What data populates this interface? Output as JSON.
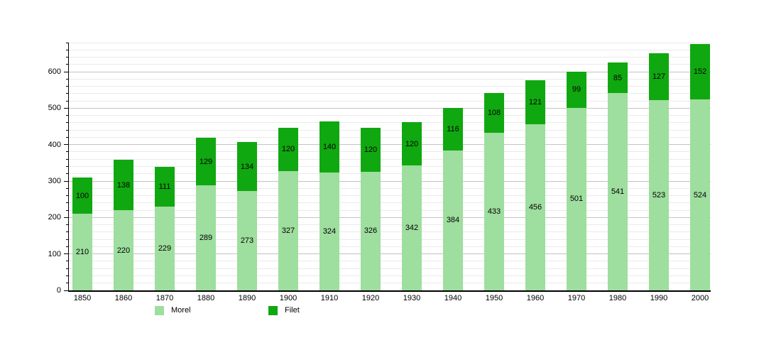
{
  "chart_data": {
    "type": "bar",
    "stacked": true,
    "title": "",
    "xlabel": "",
    "ylabel": "",
    "categories": [
      "1850",
      "1860",
      "1870",
      "1880",
      "1890",
      "1900",
      "1910",
      "1920",
      "1930",
      "1940",
      "1950",
      "1960",
      "1970",
      "1980",
      "1990",
      "2000"
    ],
    "series": [
      {
        "name": "Morel",
        "color": "#9EDE9E",
        "values": [
          210,
          220,
          229,
          289,
          273,
          327,
          324,
          326,
          342,
          384,
          433,
          456,
          501,
          541,
          523,
          524
        ]
      },
      {
        "name": "Filet",
        "color": "#10A810",
        "values": [
          100,
          138,
          111,
          129,
          134,
          120,
          140,
          120,
          120,
          116,
          108,
          121,
          99,
          85,
          127,
          152
        ]
      }
    ],
    "ylim": [
      0,
      680
    ],
    "y_major_step": 100,
    "y_minor_step": 20,
    "y_tick_labels": [
      "0",
      "100",
      "200",
      "300",
      "400",
      "500",
      "600"
    ],
    "grid": true,
    "legend_position": "bottom",
    "bar_value_labels": true
  }
}
